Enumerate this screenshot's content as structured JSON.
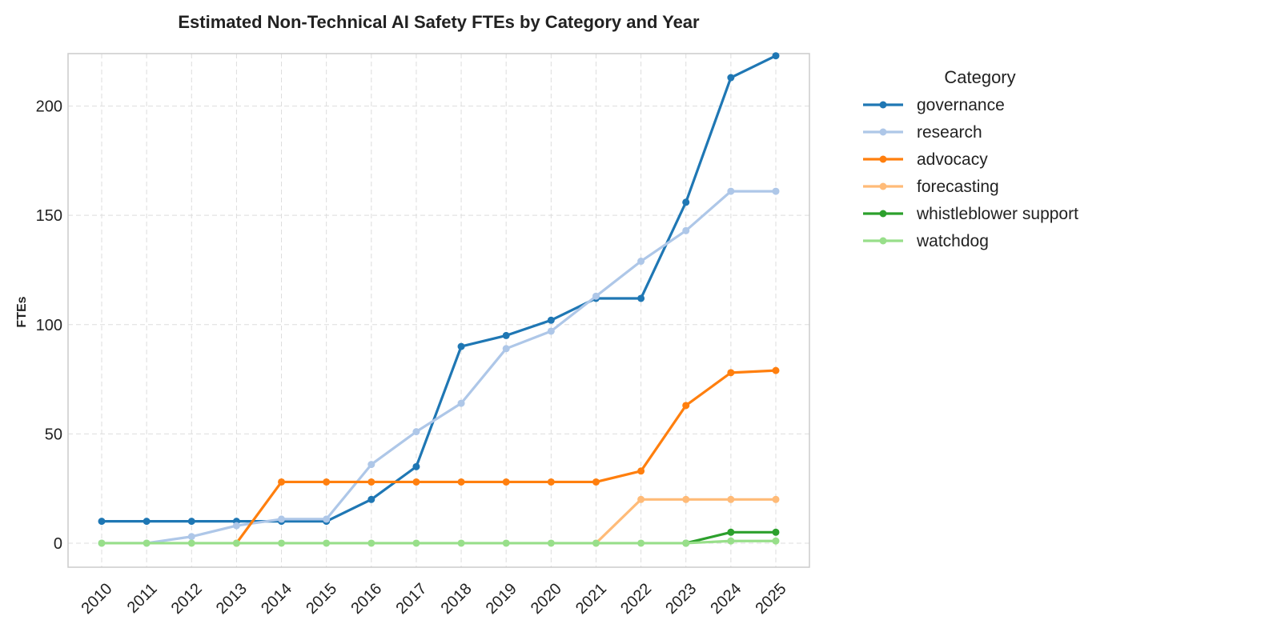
{
  "chart_data": {
    "type": "line",
    "title": "Estimated Non-Technical AI Safety FTEs by Category and Year",
    "xlabel": "",
    "ylabel": "FTEs",
    "x": [
      2010,
      2011,
      2012,
      2013,
      2014,
      2015,
      2016,
      2017,
      2018,
      2019,
      2020,
      2021,
      2022,
      2023,
      2024,
      2025
    ],
    "ylim": [
      -11,
      224
    ],
    "yticks": [
      0,
      50,
      100,
      150,
      200
    ],
    "grid": true,
    "legend": {
      "title": "Category",
      "placement": "outside-right"
    },
    "series": [
      {
        "name": "governance",
        "color": "#1f77b4",
        "values": [
          10,
          10,
          10,
          10,
          10,
          10,
          20,
          35,
          90,
          95,
          102,
          112,
          112,
          156,
          213,
          223
        ]
      },
      {
        "name": "research",
        "color": "#aec7e8",
        "values": [
          0,
          0,
          3,
          8,
          11,
          11,
          36,
          51,
          64,
          89,
          97,
          113,
          129,
          143,
          161,
          161
        ]
      },
      {
        "name": "advocacy",
        "color": "#ff7f0e",
        "values": [
          null,
          null,
          null,
          0,
          28,
          28,
          28,
          28,
          28,
          28,
          28,
          28,
          33,
          63,
          78,
          79
        ]
      },
      {
        "name": "forecasting",
        "color": "#ffbb78",
        "values": [
          null,
          null,
          null,
          null,
          null,
          null,
          null,
          null,
          null,
          null,
          null,
          0,
          20,
          20,
          20,
          20
        ]
      },
      {
        "name": "whistleblower support",
        "color": "#2ca02c",
        "values": [
          null,
          null,
          null,
          null,
          null,
          null,
          null,
          null,
          null,
          null,
          null,
          null,
          null,
          0,
          5,
          5
        ]
      },
      {
        "name": "watchdog",
        "color": "#98df8a",
        "values": [
          0,
          0,
          0,
          0,
          0,
          0,
          0,
          0,
          0,
          0,
          0,
          0,
          0,
          0,
          1,
          1
        ]
      }
    ]
  }
}
